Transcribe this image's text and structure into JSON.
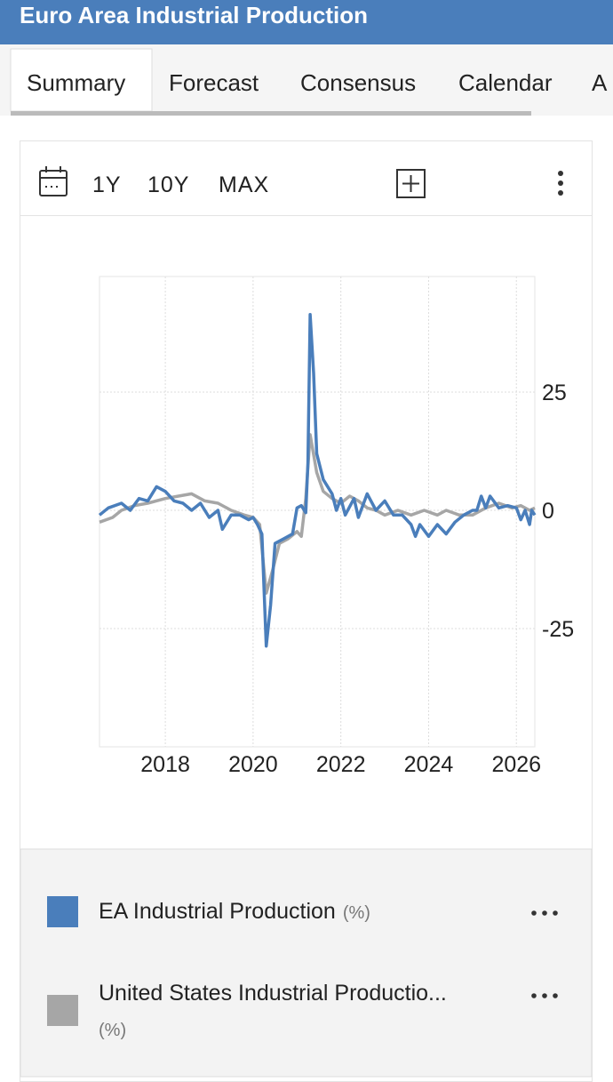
{
  "header": {
    "title": "Euro Area Industrial Production"
  },
  "tabs": [
    "Summary",
    "Forecast",
    "Consensus",
    "Calendar",
    "A"
  ],
  "toolbar": {
    "ranges": [
      "1Y",
      "10Y",
      "MAX"
    ]
  },
  "chart_data": {
    "type": "line",
    "xlim": [
      2016.5,
      2026.42
    ],
    "xticks": [
      2018,
      2020,
      2022,
      2024,
      2026
    ],
    "ylim": [
      -50,
      50
    ],
    "yticks": [
      25,
      0,
      -25
    ],
    "grid": true,
    "series": [
      {
        "name": "EA Industrial Production",
        "unit": "(%)",
        "color": "#4a7ebb",
        "x": [
          2016.5,
          2016.7,
          2017.0,
          2017.2,
          2017.4,
          2017.6,
          2017.8,
          2018.0,
          2018.2,
          2018.4,
          2018.6,
          2018.8,
          2019.0,
          2019.2,
          2019.3,
          2019.5,
          2019.7,
          2019.9,
          2020.0,
          2020.1,
          2020.2,
          2020.3,
          2020.4,
          2020.5,
          2020.7,
          2020.9,
          2021.0,
          2021.1,
          2021.2,
          2021.25,
          2021.3,
          2021.38,
          2021.45,
          2021.6,
          2021.8,
          2021.9,
          2022.0,
          2022.1,
          2022.3,
          2022.4,
          2022.6,
          2022.8,
          2022.9,
          2023.0,
          2023.2,
          2023.4,
          2023.6,
          2023.7,
          2023.8,
          2024.0,
          2024.2,
          2024.4,
          2024.6,
          2024.8,
          2025.0,
          2025.1,
          2025.2,
          2025.3,
          2025.4,
          2025.6,
          2025.8,
          2026.0,
          2026.1,
          2026.2,
          2026.3,
          2026.35,
          2026.42
        ],
        "values": [
          -1,
          0.5,
          1.5,
          0,
          2.5,
          2,
          5,
          4,
          2,
          1.5,
          0,
          1.5,
          -1.5,
          0,
          -4,
          -1,
          -1,
          -2,
          -1.5,
          -3,
          -5,
          -28.7,
          -20,
          -7,
          -6,
          -5,
          0.5,
          1,
          -0.5,
          10,
          41.4,
          29,
          12,
          6.5,
          3.5,
          0,
          2.5,
          -1,
          2.5,
          -1.5,
          3.5,
          0,
          1,
          2,
          -1,
          -1,
          -3,
          -5.5,
          -3,
          -5.5,
          -3,
          -5,
          -2.5,
          -1,
          0,
          0,
          3,
          0.5,
          3,
          0.5,
          1,
          0.5,
          -2,
          0,
          -3,
          0,
          -1
        ]
      },
      {
        "name": "United States Industrial Productio...",
        "unit": "(%)",
        "color": "#a6a6a6",
        "x": [
          2016.5,
          2016.8,
          2017.0,
          2017.3,
          2017.6,
          2018.0,
          2018.3,
          2018.6,
          2018.9,
          2019.2,
          2019.5,
          2019.8,
          2020.0,
          2020.15,
          2020.3,
          2020.45,
          2020.6,
          2020.8,
          2021.0,
          2021.1,
          2021.2,
          2021.3,
          2021.45,
          2021.6,
          2021.8,
          2022.0,
          2022.2,
          2022.4,
          2022.6,
          2022.8,
          2023.0,
          2023.3,
          2023.6,
          2023.9,
          2024.2,
          2024.4,
          2024.7,
          2025.0,
          2025.3,
          2025.6,
          2025.9,
          2026.1,
          2026.3,
          2026.42
        ],
        "values": [
          -2.5,
          -1.5,
          0,
          1,
          1.5,
          2.5,
          3,
          3.5,
          2,
          1.5,
          0,
          -1,
          -1.5,
          -3,
          -17.5,
          -12.5,
          -7,
          -6,
          -4.5,
          -5.5,
          2.5,
          16,
          8,
          4,
          2.5,
          1.5,
          3,
          2,
          0.5,
          0,
          -1,
          0,
          -1,
          0,
          -1,
          0,
          -1,
          -1,
          0.5,
          1.5,
          0.5,
          1,
          0,
          0.5
        ]
      }
    ]
  }
}
